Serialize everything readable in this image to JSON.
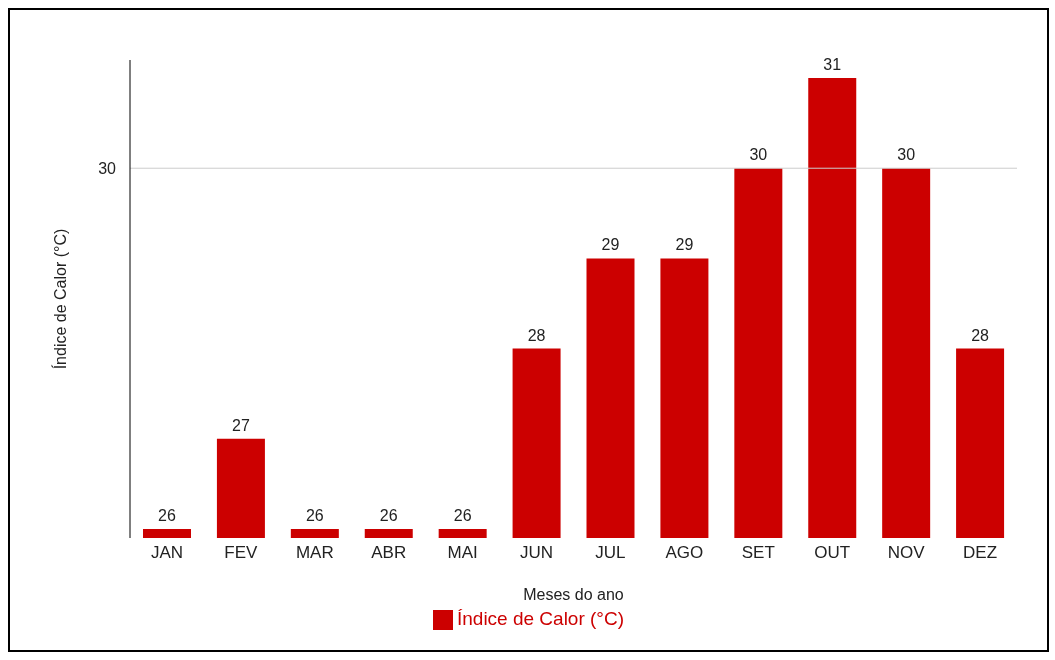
{
  "chart_data": {
    "type": "bar",
    "xlabel": "Meses do ano",
    "ylabel": "Índice de Calor (°C)",
    "categories": [
      "JAN",
      "FEV",
      "MAR",
      "ABR",
      "MAI",
      "JUN",
      "JUL",
      "AGO",
      "SET",
      "OUT",
      "NOV",
      "DEZ"
    ],
    "series": [
      {
        "name": "Índice de Calor (°C)",
        "color": "#cc0000",
        "values": [
          26,
          27,
          26,
          26,
          26,
          28,
          29,
          29,
          30,
          31,
          30,
          28
        ]
      }
    ],
    "ylim": [
      25.9,
      31.2
    ],
    "data_labels": true,
    "ref_lines": [
      {
        "axis": "y",
        "value": 30,
        "label": "30",
        "color": "#cccccc"
      }
    ],
    "legend": "bottom"
  }
}
